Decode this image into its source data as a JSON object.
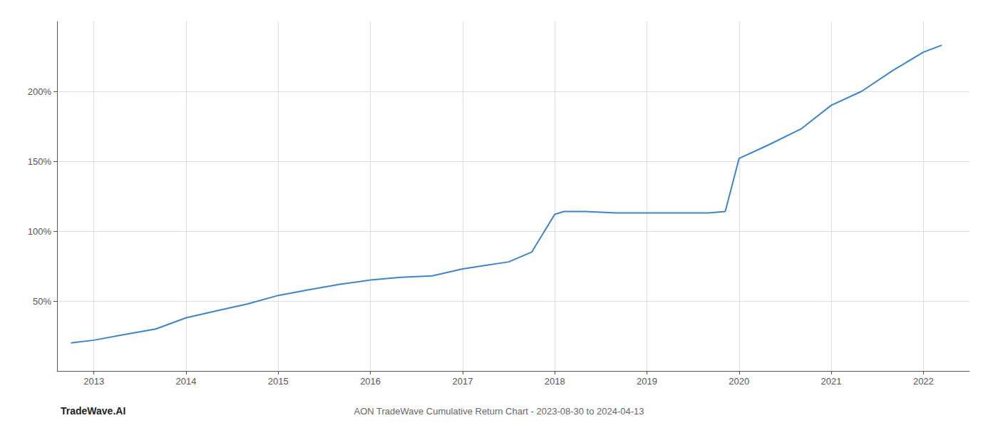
{
  "chart_data": {
    "type": "line",
    "title": "AON TradeWave Cumulative Return Chart - 2023-08-30 to 2024-04-13",
    "annotations": [
      "TradeWave.AI"
    ],
    "x": [
      2012.75,
      2013.0,
      2013.33,
      2013.67,
      2014.0,
      2014.33,
      2014.67,
      2015.0,
      2015.33,
      2015.67,
      2016.0,
      2016.33,
      2016.67,
      2017.0,
      2017.2,
      2017.5,
      2017.75,
      2018.0,
      2018.1,
      2018.33,
      2018.67,
      2019.0,
      2019.33,
      2019.67,
      2019.85,
      2020.0,
      2020.33,
      2020.67,
      2021.0,
      2021.33,
      2021.67,
      2022.0,
      2022.2
    ],
    "values": [
      20,
      22,
      26,
      30,
      38,
      43,
      48,
      54,
      58,
      62,
      65,
      67,
      68,
      73,
      75,
      78,
      85,
      112,
      114,
      114,
      113,
      113,
      113,
      113,
      114,
      152,
      162,
      173,
      190,
      200,
      215,
      228,
      233
    ],
    "color": "#3d85c8",
    "xlim": [
      2012.6,
      2022.5
    ],
    "xticks": [
      2013,
      2014,
      2015,
      2016,
      2017,
      2018,
      2019,
      2020,
      2021,
      2022
    ],
    "ylim": [
      0,
      250
    ],
    "yticks": [
      {
        "value": 50,
        "label": "50%"
      },
      {
        "value": 100,
        "label": "100%"
      },
      {
        "value": 150,
        "label": "150%"
      },
      {
        "value": 200,
        "label": "200%"
      }
    ],
    "grid": true
  }
}
